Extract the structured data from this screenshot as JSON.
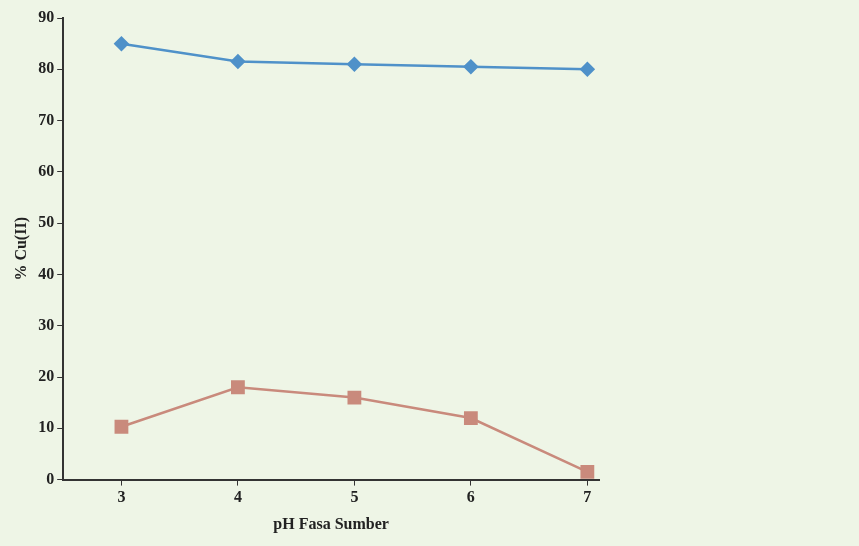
{
  "chart_data": {
    "type": "line",
    "x_label": "pH Fasa Sumber",
    "y_label": "% Cu(II)",
    "x": [
      3,
      4,
      5,
      6,
      7
    ],
    "series": [
      {
        "color": "#4f91c9",
        "marker": "diamond",
        "values": [
          85,
          81.5,
          81,
          80.5,
          80
        ]
      },
      {
        "color": "#c98a7c",
        "marker": "square",
        "values": [
          10.3,
          18,
          16,
          12,
          1.5
        ]
      }
    ],
    "xlim": [
      2.5,
      7.1
    ],
    "xticks": [
      3,
      4,
      5,
      6,
      7
    ],
    "ylim": [
      0,
      90
    ],
    "yticks": [
      0,
      10,
      20,
      30,
      40,
      50,
      60,
      70,
      80,
      90
    ],
    "grid": false
  }
}
